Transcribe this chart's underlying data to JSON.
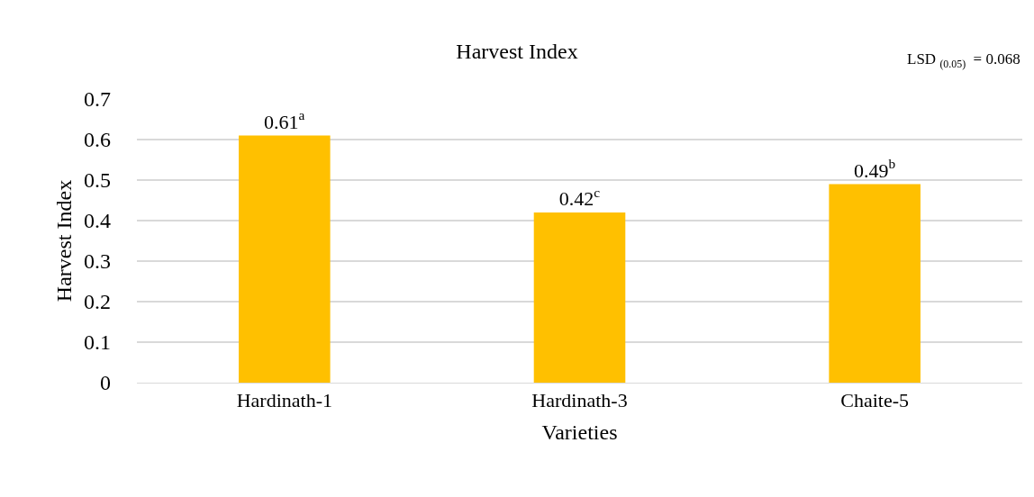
{
  "chart_data": {
    "type": "bar",
    "title": "Harvest Index",
    "xlabel": "Varieties",
    "ylabel": "Harvest Index",
    "categories": [
      "Hardinath-1",
      "Hardinath-3",
      "Chaite-5"
    ],
    "values": [
      0.61,
      0.42,
      0.49
    ],
    "value_labels": [
      "0.61$^{a}$",
      "0.42$^{c}$",
      "0.49$^{b}$"
    ],
    "color": "#ffc000",
    "ylim": [
      0,
      0.7
    ],
    "yticks": [
      0,
      0.1,
      0.2,
      0.3,
      0.4,
      0.5,
      0.6,
      0.7
    ],
    "grid": "y",
    "legend": false,
    "annotations": [
      "LSD $_{(0.05)}$  = 0.068"
    ]
  }
}
